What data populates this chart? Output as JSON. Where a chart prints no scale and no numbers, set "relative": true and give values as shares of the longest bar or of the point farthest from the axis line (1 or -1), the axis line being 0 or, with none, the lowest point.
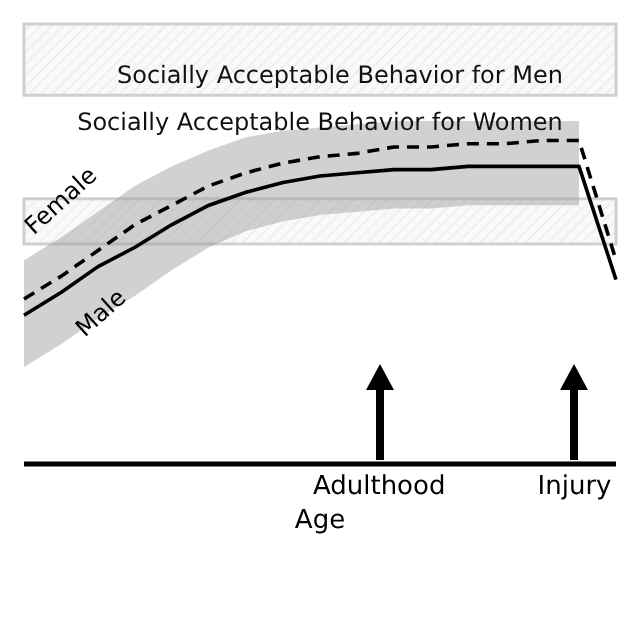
{
  "chart_data": {
    "type": "line",
    "relative": true,
    "xlabel": "Age",
    "categories": [
      null,
      null,
      null,
      null,
      null,
      null,
      null,
      null,
      null,
      null,
      null,
      null,
      null,
      null,
      null,
      null,
      null
    ],
    "series": [
      {
        "name": "Male",
        "color": "#000000",
        "line_style": "solid",
        "values": [
          0.46,
          0.53,
          0.61,
          0.67,
          0.74,
          0.8,
          0.84,
          0.87,
          0.89,
          0.9,
          0.91,
          0.91,
          0.92,
          0.92,
          0.92,
          0.92,
          0.57
        ],
        "lower": [
          0.3,
          0.37,
          0.45,
          0.52,
          0.6,
          0.67,
          0.72,
          0.75,
          0.77,
          0.78,
          0.79,
          0.79,
          0.8,
          0.8,
          0.8,
          0.8,
          null
        ],
        "upper": [
          0.63,
          0.7,
          0.78,
          0.86,
          0.92,
          0.97,
          1.01,
          1.03,
          1.04,
          1.05,
          1.06,
          1.06,
          1.06,
          1.06,
          1.06,
          1.06,
          null
        ]
      },
      {
        "name": "Female",
        "color": "#000000",
        "line_style": "dashed",
        "values": [
          0.51,
          0.58,
          0.66,
          0.74,
          0.8,
          0.86,
          0.9,
          0.93,
          0.95,
          0.96,
          0.98,
          0.98,
          0.99,
          0.99,
          1,
          1,
          0.63
        ]
      }
    ],
    "bands": [
      {
        "axis": "y",
        "from": 1.14,
        "to": 1.36,
        "label": "Socially Acceptable Behavior for Men",
        "color": "#d0d0d0"
      },
      {
        "axis": "y",
        "from": 0.68,
        "to": 0.82,
        "color": "#d0d0d0"
      }
    ],
    "annotations": [
      "Socially Acceptable Behavior for Women",
      "Adulthood",
      "Injury"
    ],
    "legend": false,
    "grid": false
  }
}
